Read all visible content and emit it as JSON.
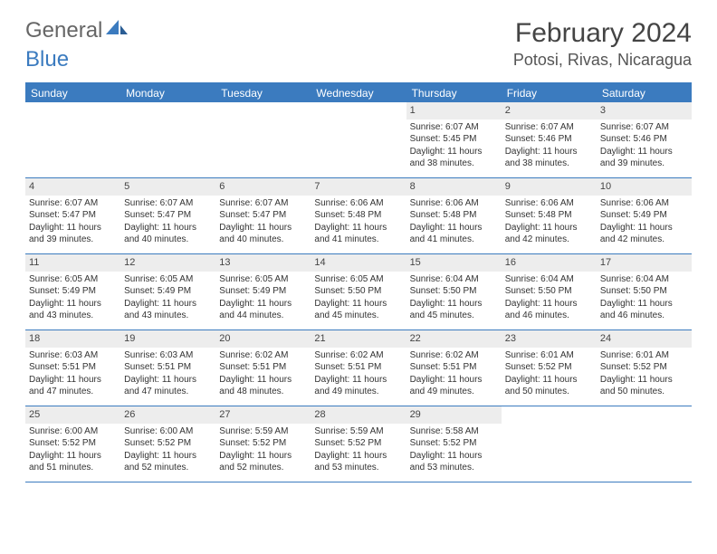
{
  "logo": {
    "text1": "General",
    "text2": "Blue"
  },
  "title": "February 2024",
  "location": "Potosi, Rivas, Nicaragua",
  "colors": {
    "header_bar": "#3b7bbf",
    "daynum_bg": "#ededed",
    "text": "#333333",
    "background": "#ffffff"
  },
  "weekdays": [
    "Sunday",
    "Monday",
    "Tuesday",
    "Wednesday",
    "Thursday",
    "Friday",
    "Saturday"
  ],
  "weeks": [
    [
      null,
      null,
      null,
      null,
      {
        "n": "1",
        "sr": "Sunrise: 6:07 AM",
        "ss": "Sunset: 5:45 PM",
        "dl": "Daylight: 11 hours and 38 minutes."
      },
      {
        "n": "2",
        "sr": "Sunrise: 6:07 AM",
        "ss": "Sunset: 5:46 PM",
        "dl": "Daylight: 11 hours and 38 minutes."
      },
      {
        "n": "3",
        "sr": "Sunrise: 6:07 AM",
        "ss": "Sunset: 5:46 PM",
        "dl": "Daylight: 11 hours and 39 minutes."
      }
    ],
    [
      {
        "n": "4",
        "sr": "Sunrise: 6:07 AM",
        "ss": "Sunset: 5:47 PM",
        "dl": "Daylight: 11 hours and 39 minutes."
      },
      {
        "n": "5",
        "sr": "Sunrise: 6:07 AM",
        "ss": "Sunset: 5:47 PM",
        "dl": "Daylight: 11 hours and 40 minutes."
      },
      {
        "n": "6",
        "sr": "Sunrise: 6:07 AM",
        "ss": "Sunset: 5:47 PM",
        "dl": "Daylight: 11 hours and 40 minutes."
      },
      {
        "n": "7",
        "sr": "Sunrise: 6:06 AM",
        "ss": "Sunset: 5:48 PM",
        "dl": "Daylight: 11 hours and 41 minutes."
      },
      {
        "n": "8",
        "sr": "Sunrise: 6:06 AM",
        "ss": "Sunset: 5:48 PM",
        "dl": "Daylight: 11 hours and 41 minutes."
      },
      {
        "n": "9",
        "sr": "Sunrise: 6:06 AM",
        "ss": "Sunset: 5:48 PM",
        "dl": "Daylight: 11 hours and 42 minutes."
      },
      {
        "n": "10",
        "sr": "Sunrise: 6:06 AM",
        "ss": "Sunset: 5:49 PM",
        "dl": "Daylight: 11 hours and 42 minutes."
      }
    ],
    [
      {
        "n": "11",
        "sr": "Sunrise: 6:05 AM",
        "ss": "Sunset: 5:49 PM",
        "dl": "Daylight: 11 hours and 43 minutes."
      },
      {
        "n": "12",
        "sr": "Sunrise: 6:05 AM",
        "ss": "Sunset: 5:49 PM",
        "dl": "Daylight: 11 hours and 43 minutes."
      },
      {
        "n": "13",
        "sr": "Sunrise: 6:05 AM",
        "ss": "Sunset: 5:49 PM",
        "dl": "Daylight: 11 hours and 44 minutes."
      },
      {
        "n": "14",
        "sr": "Sunrise: 6:05 AM",
        "ss": "Sunset: 5:50 PM",
        "dl": "Daylight: 11 hours and 45 minutes."
      },
      {
        "n": "15",
        "sr": "Sunrise: 6:04 AM",
        "ss": "Sunset: 5:50 PM",
        "dl": "Daylight: 11 hours and 45 minutes."
      },
      {
        "n": "16",
        "sr": "Sunrise: 6:04 AM",
        "ss": "Sunset: 5:50 PM",
        "dl": "Daylight: 11 hours and 46 minutes."
      },
      {
        "n": "17",
        "sr": "Sunrise: 6:04 AM",
        "ss": "Sunset: 5:50 PM",
        "dl": "Daylight: 11 hours and 46 minutes."
      }
    ],
    [
      {
        "n": "18",
        "sr": "Sunrise: 6:03 AM",
        "ss": "Sunset: 5:51 PM",
        "dl": "Daylight: 11 hours and 47 minutes."
      },
      {
        "n": "19",
        "sr": "Sunrise: 6:03 AM",
        "ss": "Sunset: 5:51 PM",
        "dl": "Daylight: 11 hours and 47 minutes."
      },
      {
        "n": "20",
        "sr": "Sunrise: 6:02 AM",
        "ss": "Sunset: 5:51 PM",
        "dl": "Daylight: 11 hours and 48 minutes."
      },
      {
        "n": "21",
        "sr": "Sunrise: 6:02 AM",
        "ss": "Sunset: 5:51 PM",
        "dl": "Daylight: 11 hours and 49 minutes."
      },
      {
        "n": "22",
        "sr": "Sunrise: 6:02 AM",
        "ss": "Sunset: 5:51 PM",
        "dl": "Daylight: 11 hours and 49 minutes."
      },
      {
        "n": "23",
        "sr": "Sunrise: 6:01 AM",
        "ss": "Sunset: 5:52 PM",
        "dl": "Daylight: 11 hours and 50 minutes."
      },
      {
        "n": "24",
        "sr": "Sunrise: 6:01 AM",
        "ss": "Sunset: 5:52 PM",
        "dl": "Daylight: 11 hours and 50 minutes."
      }
    ],
    [
      {
        "n": "25",
        "sr": "Sunrise: 6:00 AM",
        "ss": "Sunset: 5:52 PM",
        "dl": "Daylight: 11 hours and 51 minutes."
      },
      {
        "n": "26",
        "sr": "Sunrise: 6:00 AM",
        "ss": "Sunset: 5:52 PM",
        "dl": "Daylight: 11 hours and 52 minutes."
      },
      {
        "n": "27",
        "sr": "Sunrise: 5:59 AM",
        "ss": "Sunset: 5:52 PM",
        "dl": "Daylight: 11 hours and 52 minutes."
      },
      {
        "n": "28",
        "sr": "Sunrise: 5:59 AM",
        "ss": "Sunset: 5:52 PM",
        "dl": "Daylight: 11 hours and 53 minutes."
      },
      {
        "n": "29",
        "sr": "Sunrise: 5:58 AM",
        "ss": "Sunset: 5:52 PM",
        "dl": "Daylight: 11 hours and 53 minutes."
      },
      null,
      null
    ]
  ]
}
